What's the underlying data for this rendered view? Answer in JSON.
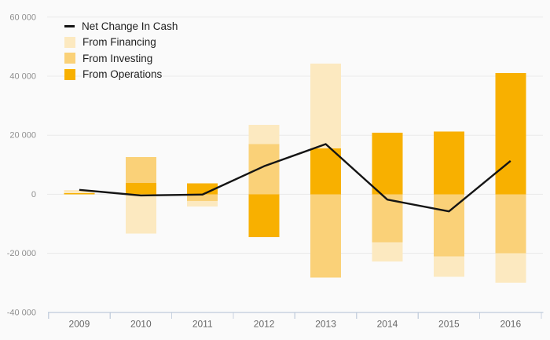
{
  "chart_data": {
    "type": "bar",
    "subtype": "stacked-bars-with-line-overlay",
    "title": "",
    "categories": [
      "2009",
      "2010",
      "2011",
      "2012",
      "2013",
      "2014",
      "2015",
      "2016"
    ],
    "line_series": {
      "name": "Net Change In Cash",
      "color": "#141414",
      "values": [
        1500,
        -400,
        -100,
        9500,
        17000,
        -1800,
        -5800,
        11300
      ]
    },
    "bar_series": [
      {
        "name": "From Financing",
        "color": "#fce9c0",
        "values": [
          1000,
          -13300,
          -1800,
          6500,
          28700,
          -6500,
          -7000,
          -10000
        ]
      },
      {
        "name": "From Investing",
        "color": "#fad178",
        "values": [
          0,
          8800,
          -2300,
          17000,
          -28200,
          -16300,
          -21000,
          -20000
        ]
      },
      {
        "name": "From Operations",
        "color": "#f8b000",
        "values": [
          400,
          3800,
          3700,
          -14500,
          15500,
          20800,
          21200,
          41000
        ]
      }
    ],
    "stacking": "positives and negatives stacked separately from zero, operations innermost",
    "ylim": [
      -40000,
      60000
    ],
    "yticks": [
      {
        "value": 60000,
        "label": "60 000"
      },
      {
        "value": 40000,
        "label": "40 000"
      },
      {
        "value": 20000,
        "label": "20 000"
      },
      {
        "value": 0,
        "label": "0"
      },
      {
        "value": -20000,
        "label": "-20 000"
      },
      {
        "value": -40000,
        "label": "-40 000"
      }
    ],
    "grid": "horizontal",
    "legend_position": "top-left"
  },
  "colors": {
    "background": "#fafafa",
    "grid": "#e9e9e9",
    "axis": "#c9d3e0",
    "ytick_text": "#8f8f8f",
    "xtick_text": "#666666",
    "legend_text": "#1f1f1f"
  }
}
